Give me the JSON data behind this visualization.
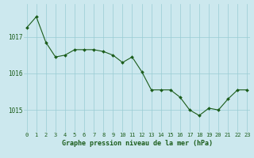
{
  "x": [
    0,
    1,
    2,
    3,
    4,
    5,
    6,
    7,
    8,
    9,
    10,
    11,
    12,
    13,
    14,
    15,
    16,
    17,
    18,
    19,
    20,
    21,
    22,
    23
  ],
  "y": [
    1017.25,
    1017.55,
    1016.85,
    1016.45,
    1016.5,
    1016.65,
    1016.65,
    1016.65,
    1016.6,
    1016.5,
    1016.3,
    1016.45,
    1016.05,
    1015.55,
    1015.55,
    1015.55,
    1015.35,
    1015.0,
    1014.85,
    1015.05,
    1015.0,
    1015.3,
    1015.55,
    1015.55
  ],
  "line_color": "#1a5c1a",
  "marker_color": "#1a5c1a",
  "bg_color": "#cce8ee",
  "grid_color": "#99ccd4",
  "xlabel": "Graphe pression niveau de la mer (hPa)",
  "xlabel_color": "#1a5c1a",
  "tick_color": "#1a5c1a",
  "ylim": [
    1014.4,
    1017.9
  ],
  "yticks": [
    1015,
    1016,
    1017
  ],
  "xlim": [
    -0.3,
    23.3
  ],
  "title": ""
}
